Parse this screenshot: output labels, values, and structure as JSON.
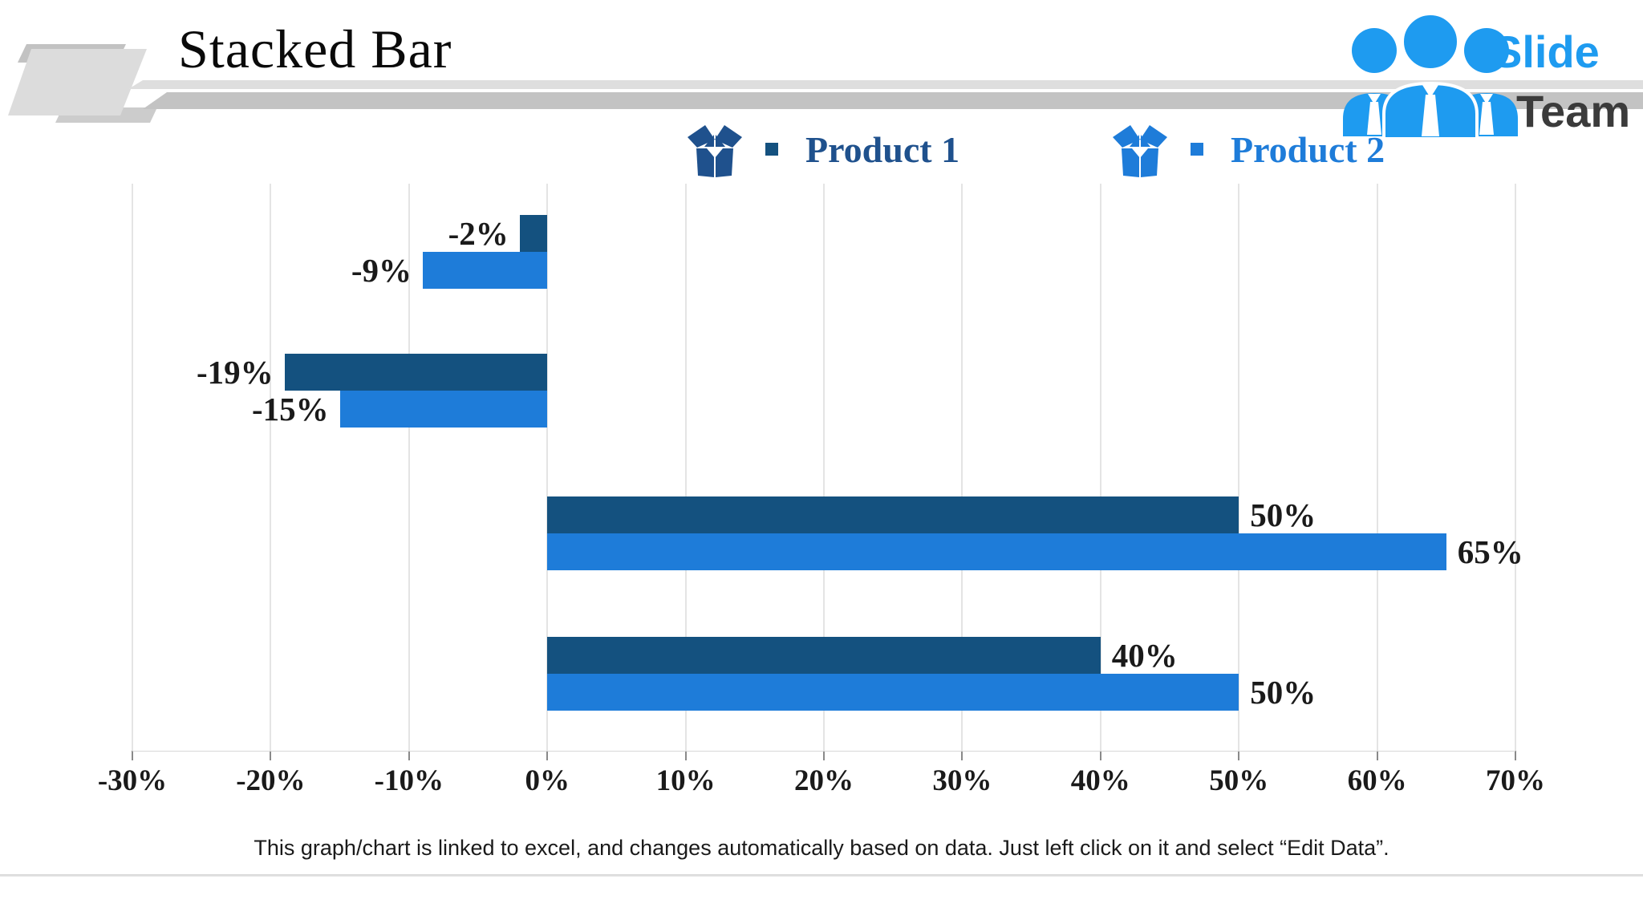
{
  "page": {
    "background": "#FFFFFF"
  },
  "header": {
    "title": "Stacked Bar",
    "logo": {
      "slide_text": "Slide",
      "team_text": "Team",
      "blue": "#1E9BF0",
      "dark": "#3B3B3B"
    }
  },
  "legend": {
    "items": [
      {
        "label": "Product 1",
        "color": "#1F518D",
        "marker_color": "#14517F"
      },
      {
        "label": "Product 2",
        "color": "#1E7CD9",
        "marker_color": "#1E7CD9"
      }
    ]
  },
  "chart_data": {
    "type": "bar",
    "orientation": "horizontal",
    "categories": [
      "",
      "",
      "",
      ""
    ],
    "series": [
      {
        "name": "Product 1",
        "color": "#14517F",
        "values": [
          -2,
          -19,
          50,
          40
        ],
        "labels": [
          "-2%",
          "-19%",
          "50%",
          "40%"
        ]
      },
      {
        "name": "Product 2",
        "color": "#1E7CD9",
        "values": [
          -9,
          -15,
          65,
          50
        ],
        "labels": [
          "-9%",
          "-15%",
          "65%",
          "50%"
        ]
      }
    ],
    "xlim": [
      -30,
      70
    ],
    "tick_values": [
      -30,
      -20,
      -10,
      0,
      10,
      20,
      30,
      40,
      50,
      60,
      70
    ],
    "tick_labels": [
      "-30%",
      "-20%",
      "-10%",
      "0%",
      "10%",
      "20%",
      "30%",
      "40%",
      "50%",
      "60%",
      "70%"
    ],
    "grid": true,
    "grid_color": "#E4E4E4",
    "value_label_color": "#1A1A1A",
    "legend_position": "top"
  },
  "footer": {
    "note": "This graph/chart is linked to excel, and changes automatically based on data. Just left click on it and select “Edit Data”."
  }
}
